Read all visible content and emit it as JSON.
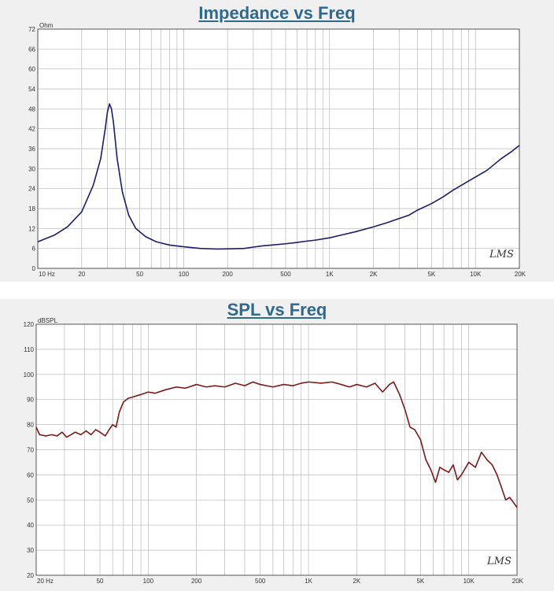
{
  "chart_data": [
    {
      "type": "line",
      "title": "Impedance vs Freq",
      "ylabel": "Ohm",
      "xscale": "log",
      "xlim": [
        10,
        20000
      ],
      "ylim": [
        0,
        72
      ],
      "grid": true,
      "yticks": [
        0,
        6,
        12,
        18,
        24,
        30,
        36,
        42,
        48,
        54,
        60,
        66,
        72
      ],
      "ytick_labels": [
        "0",
        "6",
        "12",
        "18",
        "24",
        "30",
        "36",
        "42",
        "48",
        "54",
        "60",
        "66",
        "72"
      ],
      "xticks": [
        10,
        20,
        50,
        100,
        200,
        500,
        1000,
        2000,
        5000,
        10000,
        20000
      ],
      "xtick_labels": [
        "10 Hz",
        "20",
        "50",
        "100",
        "200",
        "500",
        "1K",
        "2K",
        "5K",
        "10K",
        "20K"
      ],
      "watermark": "LMS",
      "line_color": "#1c1c6e",
      "x": [
        10,
        13,
        16,
        20,
        24,
        27,
        29,
        30,
        31,
        32,
        33,
        35,
        38,
        42,
        47,
        55,
        65,
        80,
        100,
        130,
        170,
        220,
        260,
        300,
        350,
        400,
        500,
        600,
        700,
        800,
        1000,
        1200,
        1500,
        2000,
        2500,
        3000,
        3500,
        4000,
        5000,
        6000,
        7000,
        8000,
        10000,
        12000,
        15000,
        17500,
        20000
      ],
      "y": [
        8,
        10,
        12.5,
        17,
        25,
        33,
        42,
        47,
        49.5,
        48,
        44,
        33,
        23,
        16,
        12,
        9.5,
        8,
        7,
        6.5,
        6,
        5.8,
        5.9,
        6,
        6.4,
        6.8,
        7,
        7.4,
        7.8,
        8.2,
        8.5,
        9.2,
        10,
        11,
        12.5,
        13.8,
        15,
        16,
        17.5,
        19.5,
        21.5,
        23.5,
        25,
        27.5,
        29.5,
        33,
        35,
        37
      ]
    },
    {
      "type": "line",
      "title": "SPL vs Freq",
      "ylabel": "dBSPL",
      "xscale": "log",
      "xlim": [
        20,
        20000
      ],
      "ylim": [
        20,
        120
      ],
      "grid": true,
      "yticks": [
        20,
        30,
        40,
        50,
        60,
        70,
        80,
        90,
        100,
        110,
        120
      ],
      "ytick_labels": [
        "20",
        "30",
        "40",
        "50",
        "60",
        "70",
        "80",
        "90",
        "100",
        "110",
        "120"
      ],
      "xticks": [
        20,
        50,
        100,
        200,
        500,
        1000,
        2000,
        5000,
        10000,
        20000
      ],
      "xtick_labels": [
        "20 Hz",
        "50",
        "100",
        "200",
        "500",
        "1K",
        "2K",
        "5K",
        "10K",
        "20K"
      ],
      "watermark": "LMS",
      "line_color": "#7a1a1a",
      "x": [
        20,
        21,
        23,
        25,
        27,
        29,
        31,
        33,
        35,
        38,
        41,
        44,
        47,
        50,
        54,
        57,
        60,
        63,
        66,
        70,
        75,
        80,
        90,
        100,
        110,
        130,
        150,
        170,
        200,
        230,
        260,
        300,
        350,
        400,
        450,
        500,
        600,
        700,
        800,
        900,
        1000,
        1200,
        1400,
        1600,
        1800,
        2000,
        2300,
        2600,
        2900,
        3200,
        3400,
        3700,
        4000,
        4300,
        4600,
        5000,
        5400,
        5800,
        6200,
        6600,
        7000,
        7500,
        8000,
        8500,
        9000,
        10000,
        11000,
        12000,
        13000,
        14000,
        15000,
        16000,
        17000,
        18000,
        19000,
        20000
      ],
      "y": [
        79,
        76,
        75.5,
        76,
        75.5,
        77,
        75,
        76,
        77,
        76,
        77.5,
        76,
        78,
        77,
        75.5,
        78,
        80,
        79,
        85,
        89,
        90.5,
        91,
        92,
        93,
        92.5,
        94,
        95,
        94.5,
        96,
        95,
        95.5,
        95,
        96.5,
        95.5,
        97,
        96,
        95,
        96,
        95.5,
        96.5,
        97,
        96.5,
        97,
        96,
        95,
        96,
        95,
        96.5,
        93,
        96,
        97,
        92,
        86,
        79,
        78,
        74,
        66,
        62,
        57,
        63,
        62,
        61,
        64,
        58,
        60,
        65,
        63,
        69,
        66,
        64,
        60,
        55,
        50,
        51,
        49,
        47
      ]
    }
  ]
}
